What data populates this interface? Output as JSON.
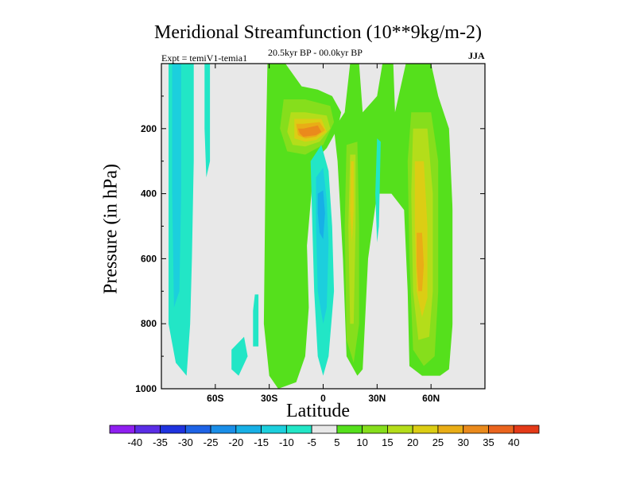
{
  "chart_data": {
    "type": "contour",
    "title": "Meridional Streamfunction (10**9kg/m-2)",
    "subtitle_left": "Expt = temiV1-temia1",
    "subtitle_center": "20.5kyr BP - 00.0kyr BP",
    "subtitle_right": "JJA",
    "xlabel": "Latitude",
    "ylabel": "Pressure (in hPa)",
    "xlim": [
      -90,
      90
    ],
    "ylim": [
      0,
      1000
    ],
    "y_inverted": true,
    "x_ticks": [
      {
        "value": -60,
        "label": "60S"
      },
      {
        "value": -30,
        "label": "30S"
      },
      {
        "value": 0,
        "label": "0"
      },
      {
        "value": 30,
        "label": "30N"
      },
      {
        "value": 60,
        "label": "60N"
      }
    ],
    "y_ticks": [
      {
        "value": 200,
        "label": "200"
      },
      {
        "value": 400,
        "label": "400"
      },
      {
        "value": 600,
        "label": "600"
      },
      {
        "value": 800,
        "label": "800"
      },
      {
        "value": 1000,
        "label": "1000"
      }
    ],
    "colorbar": {
      "levels": [
        -40,
        -35,
        -30,
        -25,
        -20,
        -15,
        -10,
        -5,
        5,
        10,
        15,
        20,
        25,
        30,
        35,
        40
      ],
      "labels": [
        "-40",
        "-35",
        "-30",
        "-25",
        "-20",
        "-15",
        "-10",
        "-5",
        "5",
        "10",
        "15",
        "20",
        "25",
        "30",
        "35",
        "40"
      ],
      "colors": [
        "#8f1ff0",
        "#5a2de6",
        "#1f33df",
        "#1e63e6",
        "#1a8ee8",
        "#17b0e6",
        "#1ccfdd",
        "#22e6c6",
        "#e8e8e8",
        "#55e01c",
        "#86de1c",
        "#b4dd1a",
        "#dccd14",
        "#e9ad16",
        "#ea8a1c",
        "#ea641e",
        "#e43a18"
      ]
    },
    "background_color": "#e8e8e8",
    "regions": [
      {
        "name": "sh-high-lat-negative",
        "level": -5,
        "points": [
          [
            -86,
            0
          ],
          [
            -72,
            0
          ],
          [
            -72,
            300
          ],
          [
            -73,
            600
          ],
          [
            -74,
            800
          ],
          [
            -76,
            960
          ],
          [
            -82,
            920
          ],
          [
            -86,
            800
          ]
        ]
      },
      {
        "name": "sh-high-lat-negative-core",
        "level": -10,
        "points": [
          [
            -84,
            0
          ],
          [
            -79,
            0
          ],
          [
            -79,
            400
          ],
          [
            -80,
            700
          ],
          [
            -83,
            750
          ],
          [
            -84,
            400
          ]
        ]
      },
      {
        "name": "sh-60s-negative-tongue",
        "level": -5,
        "points": [
          [
            -66,
            0
          ],
          [
            -63,
            0
          ],
          [
            -63,
            300
          ],
          [
            -65,
            350
          ],
          [
            -66,
            200
          ]
        ]
      },
      {
        "name": "sh-40s-negative-blob",
        "level": -5,
        "points": [
          [
            -51,
            880
          ],
          [
            -44,
            840
          ],
          [
            -42,
            900
          ],
          [
            -47,
            960
          ],
          [
            -51,
            940
          ]
        ]
      },
      {
        "name": "sh-35s-negative-blob",
        "level": -5,
        "points": [
          [
            -38,
            710
          ],
          [
            -36,
            710
          ],
          [
            -36,
            870
          ],
          [
            -39,
            870
          ],
          [
            -39,
            760
          ]
        ]
      },
      {
        "name": "tropical-positive-band",
        "level": 5,
        "points": [
          [
            -31,
            0
          ],
          [
            -21,
            0
          ],
          [
            -12,
            70
          ],
          [
            -3,
            80
          ],
          [
            5,
            100
          ],
          [
            10,
            150
          ],
          [
            8,
            200
          ],
          [
            2,
            260
          ],
          [
            -5,
            300
          ],
          [
            -9,
            560
          ],
          [
            -8,
            750
          ],
          [
            -10,
            900
          ],
          [
            -15,
            980
          ],
          [
            -25,
            1000
          ],
          [
            -30,
            960
          ],
          [
            -33,
            800
          ],
          [
            -32,
            300
          ]
        ]
      },
      {
        "name": "tropical-positive-10",
        "level": 10,
        "points": [
          [
            -22,
            110
          ],
          [
            -10,
            110
          ],
          [
            4,
            130
          ],
          [
            6,
            180
          ],
          [
            0,
            250
          ],
          [
            -10,
            280
          ],
          [
            -20,
            270
          ],
          [
            -24,
            200
          ]
        ]
      },
      {
        "name": "tropical-positive-15",
        "level": 15,
        "points": [
          [
            -18,
            150
          ],
          [
            -10,
            150
          ],
          [
            2,
            160
          ],
          [
            4,
            200
          ],
          [
            -2,
            240
          ],
          [
            -10,
            255
          ],
          [
            -17,
            250
          ],
          [
            -20,
            210
          ]
        ]
      },
      {
        "name": "tropical-positive-20",
        "level": 20,
        "points": [
          [
            -16,
            170
          ],
          [
            -10,
            170
          ],
          [
            -1,
            170
          ],
          [
            2,
            210
          ],
          [
            -4,
            235
          ],
          [
            -10,
            240
          ],
          [
            -16,
            230
          ]
        ]
      },
      {
        "name": "tropical-positive-25",
        "level": 25,
        "points": [
          [
            -15,
            185
          ],
          [
            -11,
            185
          ],
          [
            -2,
            180
          ],
          [
            1,
            205
          ],
          [
            -4,
            225
          ],
          [
            -10,
            230
          ],
          [
            -14,
            220
          ]
        ]
      },
      {
        "name": "tropical-positive-30",
        "level": 30,
        "points": [
          [
            -14,
            200
          ],
          [
            -11,
            200
          ],
          [
            -3,
            190
          ],
          [
            -1,
            210
          ],
          [
            -4,
            220
          ],
          [
            -11,
            225
          ],
          [
            -13,
            215
          ]
        ]
      },
      {
        "name": "equatorial-negative",
        "level": -5,
        "points": [
          [
            -7,
            300
          ],
          [
            -1,
            250
          ],
          [
            3,
            330
          ],
          [
            5,
            500
          ],
          [
            6,
            700
          ],
          [
            3,
            900
          ],
          [
            0,
            960
          ],
          [
            -3,
            900
          ],
          [
            -5,
            700
          ],
          [
            -6,
            500
          ]
        ]
      },
      {
        "name": "equatorial-negative-10",
        "level": -10,
        "points": [
          [
            -4,
            350
          ],
          [
            0,
            320
          ],
          [
            2,
            420
          ],
          [
            3,
            550
          ],
          [
            2,
            750
          ],
          [
            0,
            800
          ],
          [
            -3,
            700
          ],
          [
            -4,
            500
          ]
        ]
      },
      {
        "name": "equatorial-negative-15",
        "level": -15,
        "points": [
          [
            -3,
            400
          ],
          [
            0,
            390
          ],
          [
            1,
            460
          ],
          [
            0,
            540
          ],
          [
            -2,
            520
          ],
          [
            -3,
            460
          ]
        ]
      },
      {
        "name": "nh-positive-band",
        "level": 5,
        "points": [
          [
            6,
            200
          ],
          [
            12,
            150
          ],
          [
            15,
            0
          ],
          [
            20,
            0
          ],
          [
            22,
            150
          ],
          [
            30,
            100
          ],
          [
            33,
            0
          ],
          [
            39,
            0
          ],
          [
            40,
            150
          ],
          [
            46,
            0
          ],
          [
            52,
            0
          ],
          [
            60,
            0
          ],
          [
            64,
            100
          ],
          [
            70,
            200
          ],
          [
            72,
            450
          ],
          [
            72,
            800
          ],
          [
            70,
            940
          ],
          [
            65,
            960
          ],
          [
            55,
            960
          ],
          [
            48,
            930
          ],
          [
            47,
            700
          ],
          [
            45,
            450
          ],
          [
            38,
            400
          ],
          [
            30,
            400
          ],
          [
            25,
            600
          ],
          [
            22,
            940
          ],
          [
            19,
            960
          ],
          [
            13,
            900
          ],
          [
            11,
            600
          ],
          [
            9,
            400
          ],
          [
            8,
            300
          ]
        ]
      },
      {
        "name": "nh-positive-10-a",
        "level": 10,
        "points": [
          [
            13,
            250
          ],
          [
            19,
            240
          ],
          [
            20,
            500
          ],
          [
            20,
            800
          ],
          [
            17,
            920
          ],
          [
            13,
            850
          ],
          [
            12,
            500
          ]
        ]
      },
      {
        "name": "nh-positive-15-a",
        "level": 15,
        "points": [
          [
            15,
            280
          ],
          [
            18,
            280
          ],
          [
            18,
            500
          ],
          [
            17,
            800
          ],
          [
            15,
            800
          ],
          [
            14,
            500
          ]
        ]
      },
      {
        "name": "nh-positive-20-a",
        "level": 20,
        "points": [
          [
            15.5,
            300
          ],
          [
            17,
            300
          ],
          [
            17,
            450
          ],
          [
            16,
            550
          ],
          [
            15,
            450
          ]
        ]
      },
      {
        "name": "nh-positive-10-b",
        "level": 10,
        "points": [
          [
            49,
            150
          ],
          [
            60,
            150
          ],
          [
            64,
            300
          ],
          [
            64,
            700
          ],
          [
            62,
            900
          ],
          [
            56,
            930
          ],
          [
            50,
            880
          ],
          [
            48,
            600
          ],
          [
            47,
            300
          ]
        ]
      },
      {
        "name": "nh-positive-15-b",
        "level": 15,
        "points": [
          [
            50,
            200
          ],
          [
            58,
            200
          ],
          [
            61,
            400
          ],
          [
            61,
            700
          ],
          [
            59,
            840
          ],
          [
            53,
            850
          ],
          [
            50,
            700
          ],
          [
            49,
            400
          ]
        ]
      },
      {
        "name": "nh-positive-20-b",
        "level": 20,
        "points": [
          [
            51,
            300
          ],
          [
            56,
            300
          ],
          [
            58,
            500
          ],
          [
            58,
            720
          ],
          [
            55,
            780
          ],
          [
            52,
            700
          ],
          [
            51,
            500
          ]
        ]
      },
      {
        "name": "nh-positive-25-b",
        "level": 25,
        "points": [
          [
            52,
            520
          ],
          [
            55,
            520
          ],
          [
            56,
            620
          ],
          [
            55,
            700
          ],
          [
            53,
            700
          ],
          [
            52,
            620
          ]
        ]
      },
      {
        "name": "nh-negative-finger",
        "level": -5,
        "points": [
          [
            30,
            230
          ],
          [
            32,
            240
          ],
          [
            31,
            500
          ],
          [
            30,
            550
          ],
          [
            29,
            400
          ]
        ]
      },
      {
        "name": "nh-high-lat-white-strip",
        "level": 0,
        "points": [
          [
            72,
            250
          ],
          [
            74,
            280
          ],
          [
            74,
            900
          ],
          [
            72,
            900
          ]
        ]
      }
    ]
  }
}
